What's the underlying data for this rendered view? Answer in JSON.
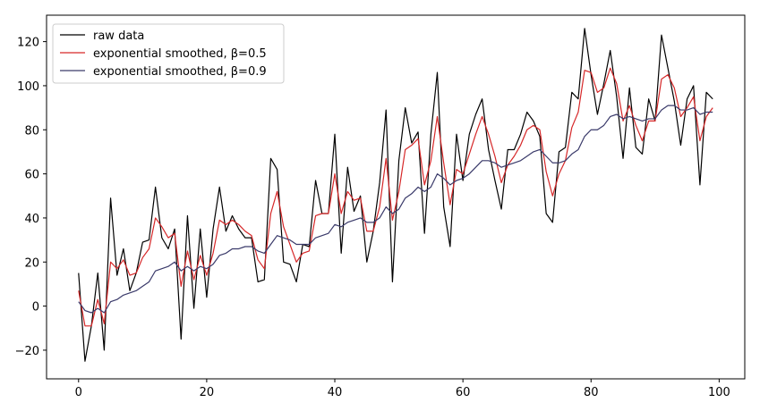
{
  "chart_data": {
    "type": "line",
    "title": "",
    "xlabel": "",
    "ylabel": "",
    "xlim": [
      -5,
      104
    ],
    "ylim": [
      -33,
      132
    ],
    "xticks": [
      0,
      20,
      40,
      60,
      80,
      100
    ],
    "yticks": [
      -20,
      0,
      20,
      40,
      60,
      80,
      100,
      120
    ],
    "tick_labels": {
      "x": [
        "0",
        "20",
        "40",
        "60",
        "80",
        "100"
      ],
      "y": [
        "−20",
        "0",
        "20",
        "40",
        "60",
        "80",
        "100",
        "120"
      ]
    },
    "grid": false,
    "legend_position": "top-left",
    "x": [
      0,
      1,
      2,
      3,
      4,
      5,
      6,
      7,
      8,
      9,
      10,
      11,
      12,
      13,
      14,
      15,
      16,
      17,
      18,
      19,
      20,
      21,
      22,
      23,
      24,
      25,
      26,
      27,
      28,
      29,
      30,
      31,
      32,
      33,
      34,
      35,
      36,
      37,
      38,
      39,
      40,
      41,
      42,
      43,
      44,
      45,
      46,
      47,
      48,
      49,
      50,
      51,
      52,
      53,
      54,
      55,
      56,
      57,
      58,
      59,
      60,
      61,
      62,
      63,
      64,
      65,
      66,
      67,
      68,
      69,
      70,
      71,
      72,
      73,
      74,
      75,
      76,
      77,
      78,
      79,
      80,
      81,
      82,
      83,
      84,
      85,
      86,
      87,
      88,
      89,
      90,
      91,
      92,
      93,
      94,
      95,
      96,
      97,
      98,
      99
    ],
    "series": [
      {
        "name": "raw data",
        "color": "#000000",
        "values": [
          15,
          -25,
          -9,
          15,
          -20,
          49,
          14,
          26,
          7,
          15,
          29,
          30,
          54,
          31,
          26,
          35,
          -15,
          41,
          -1,
          35,
          4,
          35,
          54,
          34,
          41,
          35,
          31,
          31,
          11,
          12,
          67,
          62,
          20,
          19,
          11,
          28,
          27,
          57,
          42,
          42,
          78,
          24,
          63,
          43,
          50,
          20,
          34,
          56,
          89,
          11,
          66,
          90,
          74,
          79,
          33,
          78,
          106,
          45,
          27,
          78,
          57,
          78,
          87,
          94,
          71,
          57,
          44,
          71,
          71,
          78,
          88,
          84,
          77,
          42,
          38,
          70,
          72,
          97,
          94,
          126,
          105,
          87,
          101,
          116,
          95,
          67,
          99,
          72,
          69,
          94,
          84,
          123,
          108,
          93,
          73,
          94,
          100,
          55,
          97,
          94
        ]
      },
      {
        "name": "exponential smoothed, β=0.5",
        "color": "#d62728",
        "values": [
          7,
          -9,
          -9,
          3,
          -8,
          20,
          17,
          21,
          14,
          15,
          22,
          26,
          40,
          36,
          31,
          33,
          9,
          25,
          12,
          23,
          14,
          24,
          39,
          37,
          39,
          37,
          34,
          32,
          21,
          17,
          42,
          52,
          36,
          28,
          20,
          24,
          25,
          41,
          42,
          42,
          60,
          42,
          52,
          48,
          49,
          34,
          34,
          45,
          67,
          39,
          52,
          71,
          73,
          76,
          55,
          66,
          86,
          65,
          46,
          62,
          60,
          69,
          78,
          86,
          78,
          68,
          56,
          64,
          68,
          73,
          80,
          82,
          80,
          61,
          50,
          60,
          66,
          81,
          88,
          107,
          106,
          97,
          99,
          108,
          101,
          84,
          91,
          82,
          75,
          84,
          84,
          103,
          105,
          99,
          86,
          90,
          95,
          75,
          86,
          90
        ]
      },
      {
        "name": "exponential smoothed, β=0.9",
        "color": "#3a3a6a",
        "values": [
          2,
          -2,
          -3,
          -1,
          -3,
          2,
          3,
          5,
          6,
          7,
          9,
          11,
          16,
          17,
          18,
          20,
          16,
          18,
          16,
          18,
          17,
          19,
          23,
          24,
          26,
          26,
          27,
          27,
          25,
          24,
          28,
          32,
          31,
          30,
          28,
          28,
          28,
          31,
          32,
          33,
          37,
          36,
          38,
          39,
          40,
          38,
          38,
          40,
          45,
          42,
          44,
          49,
          51,
          54,
          52,
          54,
          60,
          58,
          55,
          57,
          58,
          60,
          63,
          66,
          66,
          65,
          63,
          64,
          65,
          66,
          68,
          70,
          71,
          68,
          65,
          65,
          66,
          69,
          71,
          77,
          80,
          80,
          82,
          86,
          87,
          85,
          86,
          85,
          84,
          85,
          85,
          89,
          91,
          91,
          89,
          89,
          90,
          87,
          88,
          88
        ]
      }
    ]
  }
}
